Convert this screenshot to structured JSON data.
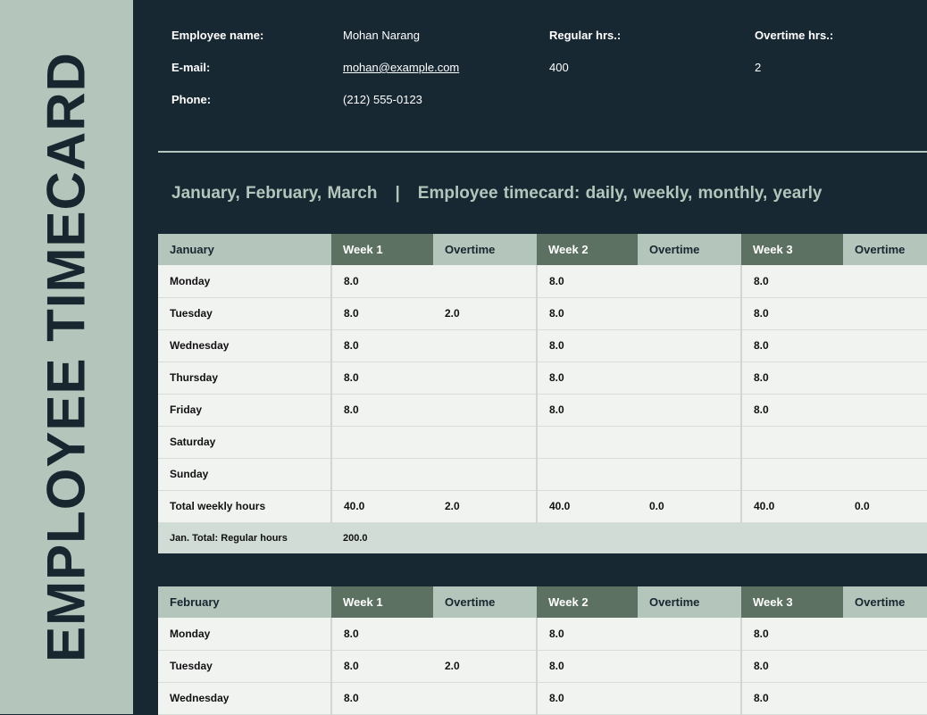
{
  "sidebar": {
    "title": "EMPLOYEE TIMECARD"
  },
  "employee": {
    "name_label": "Employee name:",
    "name": "Mohan Narang",
    "email_label": "E-mail:",
    "email": "mohan@example.com",
    "phone_label": "Phone:",
    "phone": "(212) 555-0123",
    "regular_label": "Regular hrs.:",
    "regular": "400",
    "overtime_label": "Overtime hrs.:",
    "overtime": "2"
  },
  "subtitle": {
    "months": "January, February, March",
    "separator": "|",
    "description": "Employee timecard: daily, weekly, monthly, yearly"
  },
  "colors": {
    "background": "#172833",
    "sidebar": "#b4c5bb",
    "week_header": "#5c7161",
    "row": "#f1f3f1",
    "total_row": "#d0dcd5"
  },
  "tables": [
    {
      "month": "January",
      "headers": [
        "Week 1",
        "Overtime",
        "Week 2",
        "Overtime",
        "Week 3",
        "Overtime"
      ],
      "rows": [
        {
          "day": "Monday",
          "values": [
            "8.0",
            "",
            "8.0",
            "",
            "8.0",
            ""
          ]
        },
        {
          "day": "Tuesday",
          "values": [
            "8.0",
            "2.0",
            "8.0",
            "",
            "8.0",
            ""
          ]
        },
        {
          "day": "Wednesday",
          "values": [
            "8.0",
            "",
            "8.0",
            "",
            "8.0",
            ""
          ]
        },
        {
          "day": "Thursday",
          "values": [
            "8.0",
            "",
            "8.0",
            "",
            "8.0",
            ""
          ]
        },
        {
          "day": "Friday",
          "values": [
            "8.0",
            "",
            "8.0",
            "",
            "8.0",
            ""
          ]
        },
        {
          "day": "Saturday",
          "values": [
            "",
            "",
            "",
            "",
            "",
            ""
          ]
        },
        {
          "day": "Sunday",
          "values": [
            "",
            "",
            "",
            "",
            "",
            ""
          ]
        },
        {
          "day": "Total weekly hours",
          "values": [
            "40.0",
            "2.0",
            "40.0",
            "0.0",
            "40.0",
            "0.0"
          ]
        }
      ],
      "total_label": "Jan. Total: Regular hours",
      "total": "200.0"
    },
    {
      "month": "February",
      "headers": [
        "Week 1",
        "Overtime",
        "Week 2",
        "Overtime",
        "Week 3",
        "Overtime"
      ],
      "rows": [
        {
          "day": "Monday",
          "values": [
            "8.0",
            "",
            "8.0",
            "",
            "8.0",
            ""
          ]
        },
        {
          "day": "Tuesday",
          "values": [
            "8.0",
            "2.0",
            "8.0",
            "",
            "8.0",
            ""
          ]
        },
        {
          "day": "Wednesday",
          "values": [
            "8.0",
            "",
            "8.0",
            "",
            "8.0",
            ""
          ]
        }
      ]
    }
  ]
}
